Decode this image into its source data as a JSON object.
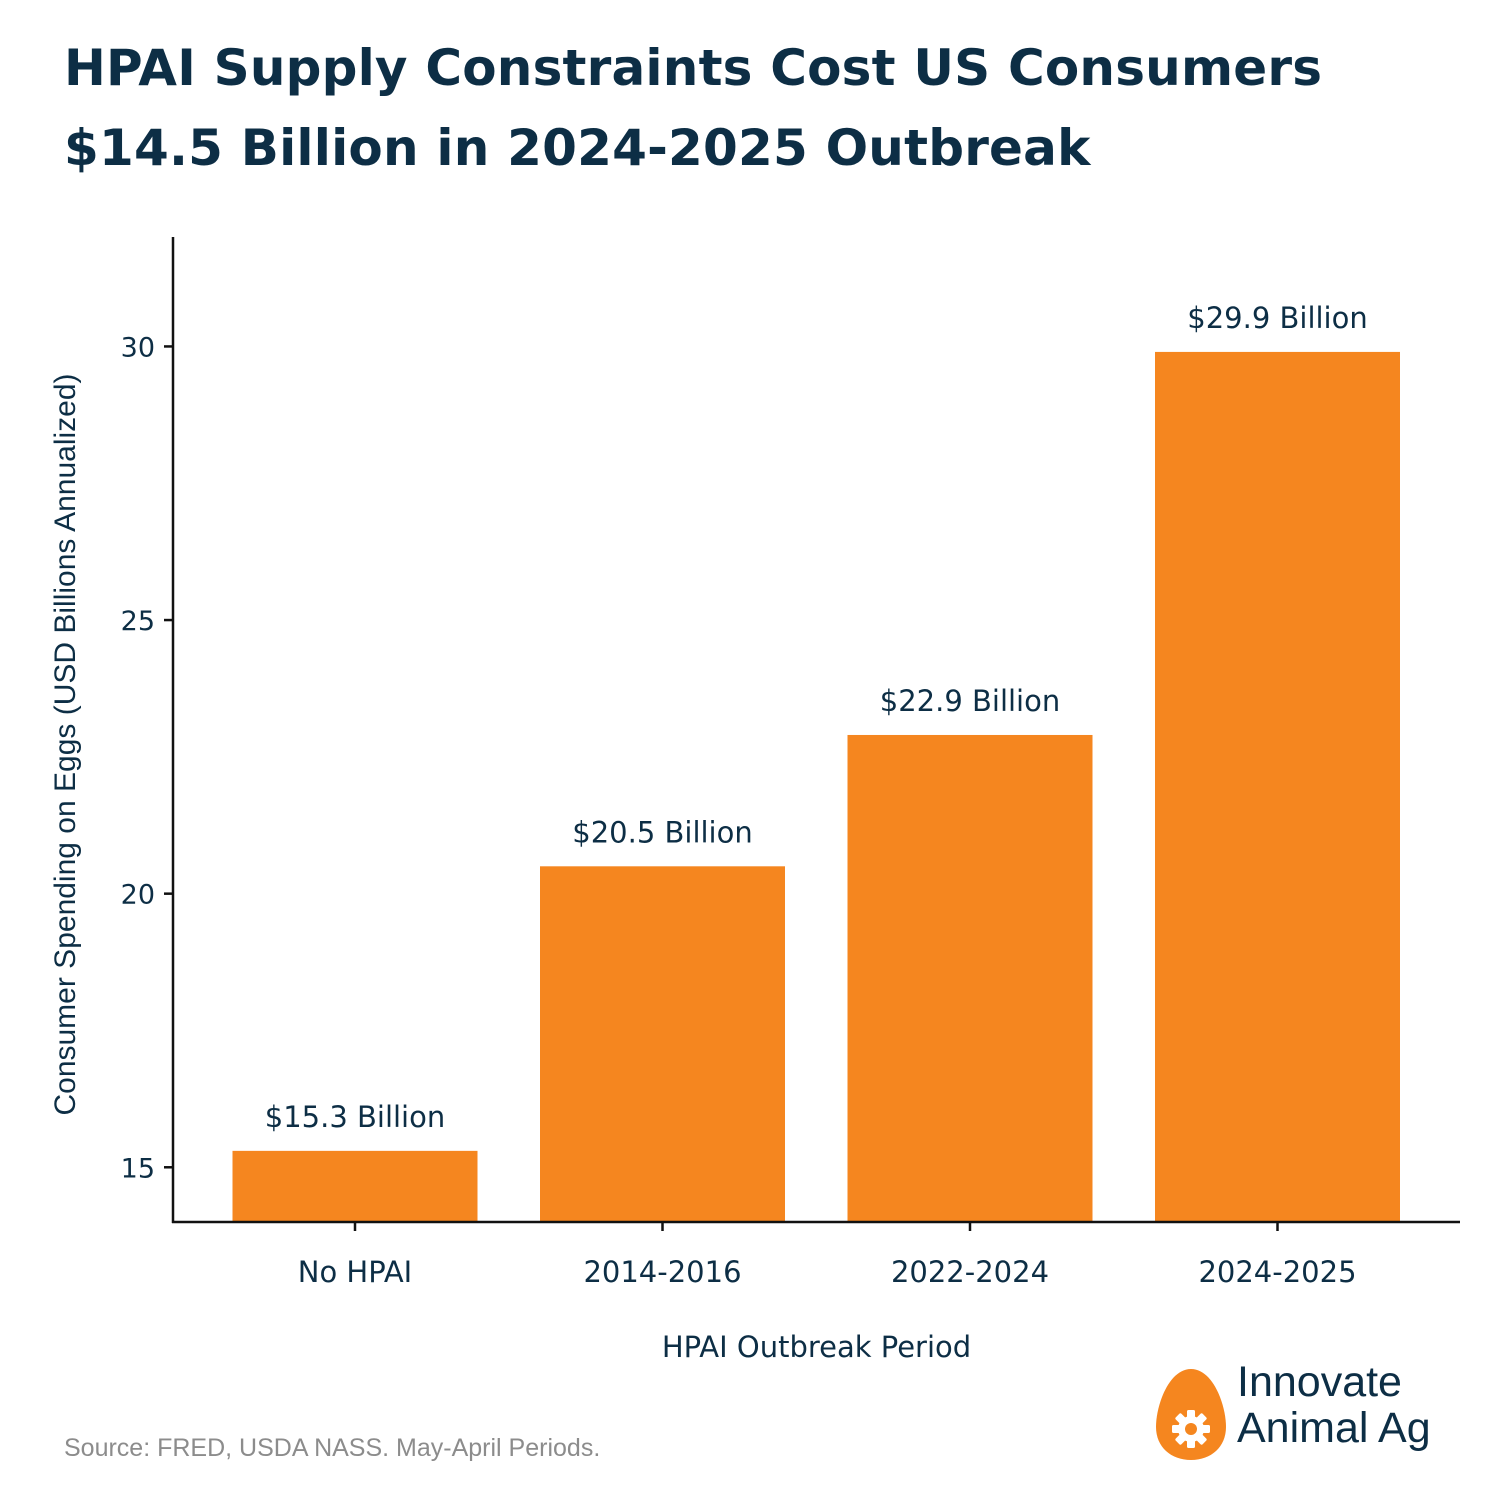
{
  "title": {
    "line1": "HPAI Supply Constraints Cost US Consumers",
    "line2": "$14.5 Billion in 2024-2025 Outbreak"
  },
  "chart_data": {
    "type": "bar",
    "title": "HPAI Supply Constraints Cost US Consumers $14.5 Billion in 2024-2025 Outbreak",
    "categories": [
      "No HPAI",
      "2014-2016",
      "2022-2024",
      "2024-2025"
    ],
    "values": [
      15.3,
      20.5,
      22.9,
      29.9
    ],
    "data_labels": [
      "$15.3 Billion",
      "$20.5 Billion",
      "$22.9 Billion",
      "$29.9 Billion"
    ],
    "xlabel": "HPAI Outbreak Period",
    "ylabel": "Consumer Spending on Eggs (USD Billions Annualized)",
    "ylim": [
      14,
      32
    ],
    "yticks": [
      15,
      20,
      25,
      30
    ],
    "ytick_labels": [
      "15",
      "20",
      "25",
      "30"
    ],
    "grid": false,
    "legend": "none",
    "bar_color": "#F5861F"
  },
  "footer": {
    "source": "Source: FRED, USDA NASS. May-April Periods."
  },
  "logo": {
    "line1": "Innovate",
    "line2": "Animal Ag",
    "icon": "egg-gear-icon",
    "egg_color": "#F5861F",
    "text_color": "#0D2E45"
  },
  "colors": {
    "text": "#0D2E45",
    "bar": "#F5861F",
    "source": "#8C8C8C"
  }
}
